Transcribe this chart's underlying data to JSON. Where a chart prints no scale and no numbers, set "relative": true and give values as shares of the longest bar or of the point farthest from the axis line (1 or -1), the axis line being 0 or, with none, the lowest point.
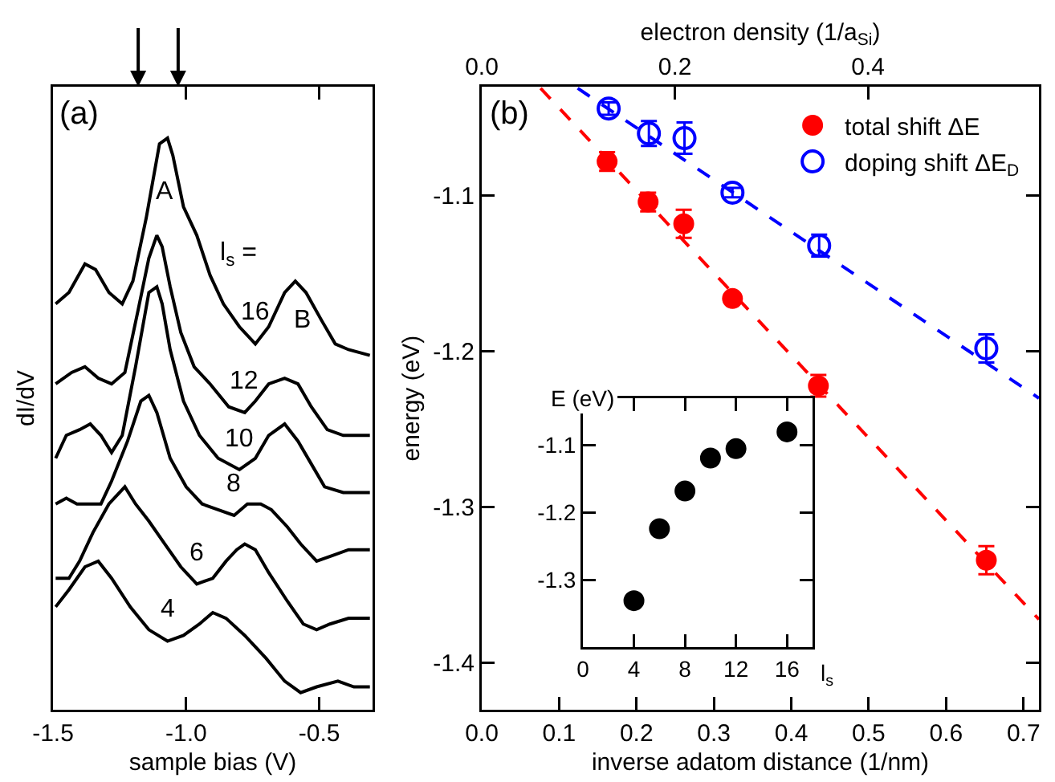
{
  "chart_data": [
    {
      "type": "line",
      "relative": true,
      "xlabel": "sample bias (V)",
      "ylabel": "dI/dV",
      "xlim": [
        -1.5,
        -0.3
      ],
      "xticks": [
        -1.5,
        {
          "value": -1,
          "label": "-1.0"
        },
        -0.5
      ],
      "tick_labels": "x",
      "grid": false,
      "annotations": [
        "(a)",
        "A",
        "B",
        "l$_{s}$ ="
      ],
      "series": [
        {
          "name": "16",
          "color": "#000000",
          "x": [
            -1.49,
            -1.44,
            -1.38,
            -1.34,
            -1.29,
            -1.24,
            -1.2,
            -1.15,
            -1.1,
            -1.07,
            -1.05,
            -1.01,
            -0.96,
            -0.91,
            -0.86,
            -0.8,
            -0.74,
            -0.69,
            -0.63,
            -0.59,
            -0.55,
            -0.49,
            -0.44,
            -0.39,
            -0.31
          ],
          "values": [
            0.71,
            0.73,
            0.78,
            0.77,
            0.73,
            0.71,
            0.75,
            0.86,
            0.99,
            1.0,
            0.97,
            0.88,
            0.83,
            0.76,
            0.71,
            0.67,
            0.64,
            0.67,
            0.73,
            0.75,
            0.73,
            0.68,
            0.64,
            0.63,
            0.62
          ]
        },
        {
          "name": "12",
          "color": "#000000",
          "x": [
            -1.49,
            -1.43,
            -1.38,
            -1.33,
            -1.28,
            -1.23,
            -1.18,
            -1.14,
            -1.11,
            -1.09,
            -1.06,
            -1.02,
            -0.97,
            -0.91,
            -0.84,
            -0.78,
            -0.74,
            -0.69,
            -0.63,
            -0.58,
            -0.53,
            -0.47,
            -0.41,
            -0.31
          ],
          "values": [
            0.57,
            0.59,
            0.6,
            0.58,
            0.57,
            0.59,
            0.7,
            0.79,
            0.83,
            0.81,
            0.74,
            0.66,
            0.6,
            0.57,
            0.53,
            0.52,
            0.54,
            0.57,
            0.58,
            0.57,
            0.53,
            0.49,
            0.48,
            0.48
          ]
        },
        {
          "name": "10",
          "color": "#000000",
          "x": [
            -1.49,
            -1.45,
            -1.4,
            -1.36,
            -1.32,
            -1.28,
            -1.24,
            -1.19,
            -1.14,
            -1.11,
            -1.09,
            -1.06,
            -1.01,
            -0.95,
            -0.88,
            -0.8,
            -0.74,
            -0.69,
            -0.63,
            -0.58,
            -0.53,
            -0.48,
            -0.41,
            -0.31
          ],
          "values": [
            0.44,
            0.48,
            0.49,
            0.5,
            0.48,
            0.45,
            0.48,
            0.6,
            0.73,
            0.74,
            0.71,
            0.63,
            0.54,
            0.48,
            0.44,
            0.42,
            0.44,
            0.48,
            0.5,
            0.47,
            0.43,
            0.39,
            0.38,
            0.38
          ]
        },
        {
          "name": "8",
          "color": "#000000",
          "x": [
            -1.49,
            -1.45,
            -1.41,
            -1.36,
            -1.32,
            -1.28,
            -1.22,
            -1.17,
            -1.14,
            -1.11,
            -1.06,
            -1.0,
            -0.94,
            -0.88,
            -0.82,
            -0.77,
            -0.72,
            -0.68,
            -0.62,
            -0.57,
            -0.51,
            -0.45,
            -0.39,
            -0.31
          ],
          "values": [
            0.36,
            0.37,
            0.36,
            0.36,
            0.36,
            0.4,
            0.47,
            0.54,
            0.55,
            0.52,
            0.44,
            0.39,
            0.36,
            0.35,
            0.34,
            0.36,
            0.36,
            0.35,
            0.32,
            0.29,
            0.26,
            0.27,
            0.28,
            0.28
          ]
        },
        {
          "name": "6",
          "color": "#000000",
          "x": [
            -1.49,
            -1.44,
            -1.4,
            -1.35,
            -1.29,
            -1.23,
            -1.19,
            -1.14,
            -1.08,
            -1.02,
            -0.96,
            -0.9,
            -0.85,
            -0.81,
            -0.78,
            -0.74,
            -0.69,
            -0.62,
            -0.56,
            -0.51,
            -0.46,
            -0.39,
            -0.31
          ],
          "values": [
            0.23,
            0.23,
            0.26,
            0.31,
            0.36,
            0.39,
            0.36,
            0.33,
            0.29,
            0.25,
            0.22,
            0.23,
            0.26,
            0.28,
            0.29,
            0.28,
            0.24,
            0.19,
            0.15,
            0.14,
            0.15,
            0.16,
            0.16
          ]
        },
        {
          "name": "4",
          "color": "#000000",
          "x": [
            -1.49,
            -1.44,
            -1.38,
            -1.33,
            -1.28,
            -1.21,
            -1.14,
            -1.07,
            -1.01,
            -0.95,
            -0.9,
            -0.85,
            -0.78,
            -0.7,
            -0.63,
            -0.57,
            -0.51,
            -0.43,
            -0.37,
            -0.31
          ],
          "values": [
            0.18,
            0.21,
            0.25,
            0.26,
            0.23,
            0.18,
            0.14,
            0.12,
            0.13,
            0.15,
            0.17,
            0.16,
            0.13,
            0.09,
            0.05,
            0.03,
            0.04,
            0.05,
            0.04,
            0.04
          ]
        }
      ]
    },
    {
      "type": "scatter",
      "xlabel": "inverse adatom distance (1/nm)",
      "ylabel": "energy (eV)",
      "x2label": "electron density (1/a$_{Si}$)",
      "xlim": [
        0,
        0.72
      ],
      "xticks": [
        {
          "value": 0,
          "label": "0.0"
        },
        0.1,
        0.2,
        0.3,
        0.4,
        0.5,
        0.6,
        0.7
      ],
      "x2lim": [
        0,
        0.577
      ],
      "x2ticks": [
        {
          "value": 0,
          "label": "0.0"
        },
        0.2,
        0.4
      ],
      "ylim": [
        -1.43,
        -1.03
      ],
      "yticks": [
        -1.1,
        -1.2,
        -1.3,
        -1.4
      ],
      "grid": false,
      "legend": "top right",
      "annotations": [
        "(b)"
      ],
      "series": [
        {
          "name": "total shift ΔE",
          "color": "#ff0000",
          "x": [
            0.162,
            0.215,
            0.261,
            0.324,
            0.435,
            0.652
          ],
          "values": [
            -1.078,
            -1.104,
            -1.118,
            -1.166,
            -1.222,
            -1.334
          ],
          "errors": [
            0.006,
            0.006,
            0.009,
            0.003,
            0.007,
            0.009
          ]
        },
        {
          "name": "doping shift ΔE$_{D}$",
          "color": "#0000ff",
          "x": [
            0.164,
            0.216,
            0.262,
            0.324,
            0.436,
            0.652
          ],
          "values": [
            -1.044,
            -1.06,
            -1.063,
            -1.098,
            -1.132,
            -1.198
          ],
          "errors": [
            0.004,
            0.008,
            0.01,
            0.003,
            0.007,
            0.009
          ]
        },
        {
          "type": "line",
          "line_style": "dashed",
          "color": "#ff0000",
          "x": [
            0.076,
            0.72
          ],
          "values": [
            -1.031,
            -1.372
          ]
        },
        {
          "type": "line",
          "line_style": "dashed",
          "color": "#0000ff",
          "x": [
            0.124,
            0.72
          ],
          "values": [
            -1.031,
            -1.23
          ]
        }
      ]
    },
    {
      "type": "scatter",
      "xlabel": "l$_{s}$",
      "ylabel": "E (eV)",
      "xlim": [
        0,
        18
      ],
      "xticks": [
        0,
        4,
        8,
        12,
        16
      ],
      "ylim": [
        -1.4,
        -1.03
      ],
      "yticks": [
        -1.1,
        -1.2,
        -1.3
      ],
      "grid": false,
      "marker": "circle",
      "series": [
        {
          "color": "#000000",
          "x": [
            4,
            6,
            8,
            10,
            12,
            16
          ],
          "values": [
            -1.331,
            -1.224,
            -1.168,
            -1.119,
            -1.105,
            -1.08
          ]
        }
      ]
    }
  ]
}
